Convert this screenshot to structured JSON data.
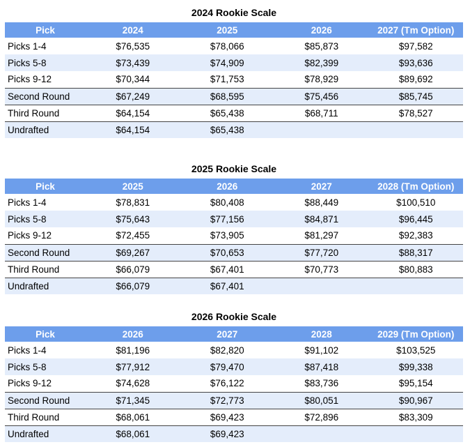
{
  "colors": {
    "header_bg": "#6D9EEB",
    "header_text": "#FFFFFF",
    "alt_row_bg": "#E4EDFB",
    "row_bg": "#FFFFFF",
    "divider": "#444444",
    "text": "#000000"
  },
  "chart_data": [
    {
      "type": "table",
      "title": "2024 Rookie Scale",
      "columns": [
        "Pick",
        "2024",
        "2025",
        "2026",
        "2027 (Tm Option)"
      ],
      "rows": [
        {
          "label": "Picks 1-4",
          "values": [
            "$76,535",
            "$78,066",
            "$85,873",
            "$97,582"
          ],
          "divider_top": false
        },
        {
          "label": "Picks 5-8",
          "values": [
            "$73,439",
            "$74,909",
            "$82,399",
            "$93,636"
          ],
          "divider_top": false
        },
        {
          "label": "Picks 9-12",
          "values": [
            "$70,344",
            "$71,753",
            "$78,929",
            "$89,692"
          ],
          "divider_top": false
        },
        {
          "label": "Second Round",
          "values": [
            "$67,249",
            "$68,595",
            "$75,456",
            "$85,745"
          ],
          "divider_top": true
        },
        {
          "label": "Third Round",
          "values": [
            "$64,154",
            "$65,438",
            "$68,711",
            "$78,527"
          ],
          "divider_top": true
        },
        {
          "label": "Undrafted",
          "values": [
            "$64,154",
            "$65,438",
            "",
            ""
          ],
          "divider_top": true
        }
      ]
    },
    {
      "type": "table",
      "title": "2025 Rookie Scale",
      "columns": [
        "Pick",
        "2025",
        "2026",
        "2027",
        "2028 (Tm Option)"
      ],
      "rows": [
        {
          "label": "Picks 1-4",
          "values": [
            "$78,831",
            "$80,408",
            "$88,449",
            "$100,510"
          ],
          "divider_top": false
        },
        {
          "label": "Picks 5-8",
          "values": [
            "$75,643",
            "$77,156",
            "$84,871",
            "$96,445"
          ],
          "divider_top": false
        },
        {
          "label": "Picks 9-12",
          "values": [
            "$72,455",
            "$73,905",
            "$81,297",
            "$92,383"
          ],
          "divider_top": false
        },
        {
          "label": "Second Round",
          "values": [
            "$69,267",
            "$70,653",
            "$77,720",
            "$88,317"
          ],
          "divider_top": true
        },
        {
          "label": "Third Round",
          "values": [
            "$66,079",
            "$67,401",
            "$70,773",
            "$80,883"
          ],
          "divider_top": true
        },
        {
          "label": "Undrafted",
          "values": [
            "$66,079",
            "$67,401",
            "",
            ""
          ],
          "divider_top": true
        }
      ]
    },
    {
      "type": "table",
      "title": "2026 Rookie Scale",
      "columns": [
        "Pick",
        "2026",
        "2027",
        "2028",
        "2029 (Tm Option)"
      ],
      "rows": [
        {
          "label": "Picks 1-4",
          "values": [
            "$81,196",
            "$82,820",
            "$91,102",
            "$103,525"
          ],
          "divider_top": false
        },
        {
          "label": "Picks 5-8",
          "values": [
            "$77,912",
            "$79,470",
            "$87,418",
            "$99,338"
          ],
          "divider_top": false
        },
        {
          "label": "Picks 9-12",
          "values": [
            "$74,628",
            "$76,122",
            "$83,736",
            "$95,154"
          ],
          "divider_top": false
        },
        {
          "label": "Second Round",
          "values": [
            "$71,345",
            "$72,773",
            "$80,051",
            "$90,967"
          ],
          "divider_top": true
        },
        {
          "label": "Third Round",
          "values": [
            "$68,061",
            "$69,423",
            "$72,896",
            "$83,309"
          ],
          "divider_top": true
        },
        {
          "label": "Undrafted",
          "values": [
            "$68,061",
            "$69,423",
            "",
            ""
          ],
          "divider_top": true
        }
      ]
    }
  ]
}
